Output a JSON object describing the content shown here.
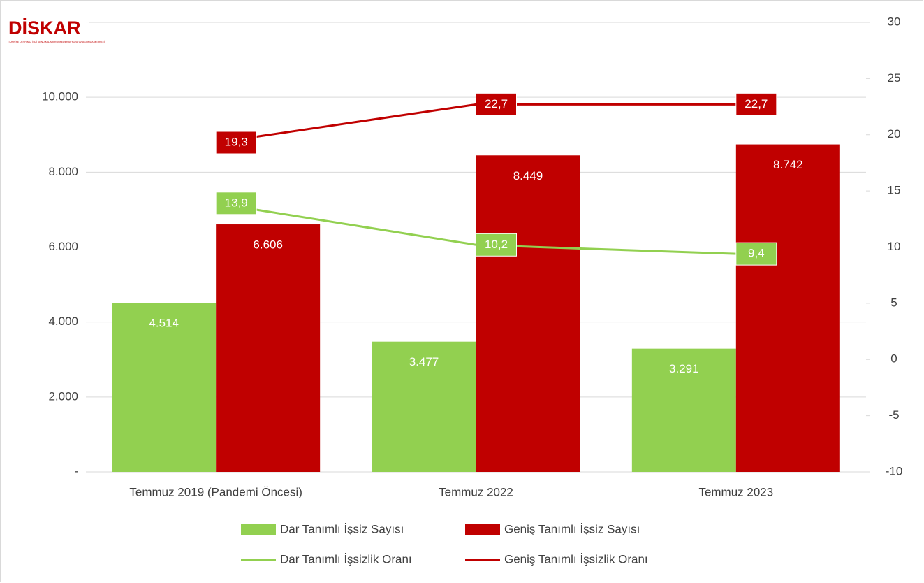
{
  "logo": {
    "text": "DİSKAR",
    "subtitle": "TÜRKİYE DEVRİMCİ İŞÇİ SENDİKALARI KONFEDERASYONU ARAŞTIRMA MERKEZİ"
  },
  "chart_data": {
    "type": "bar",
    "categories": [
      "Temmuz 2019 (Pandemi Öncesi)",
      "Temmuz 2022",
      "Temmuz 2023"
    ],
    "series": [
      {
        "name": "Dar Tanımlı İşsiz Sayısı",
        "color": "#92d050",
        "type": "bar",
        "values": [
          4514,
          3477,
          3291
        ],
        "value_labels": [
          "4.514",
          "3.477",
          "3.291"
        ]
      },
      {
        "name": "Geniş Tanımlı İşsiz Sayısı",
        "color": "#c00000",
        "type": "bar",
        "values": [
          6606,
          8449,
          8742
        ],
        "value_labels": [
          "6.606",
          "8.449",
          "8.742"
        ]
      },
      {
        "name": "Dar Tanımlı İşsizlik Oranı",
        "color": "#92d050",
        "type": "line",
        "axis": "y2",
        "values": [
          13.9,
          10.2,
          9.4
        ],
        "value_labels": [
          "13,9",
          "10,2",
          "9,4"
        ]
      },
      {
        "name": "Geniş Tanımlı İşsizlik Oranı",
        "color": "#c00000",
        "type": "line",
        "axis": "y2",
        "values": [
          19.3,
          22.7,
          22.7
        ],
        "value_labels": [
          "19,3",
          "22,7",
          "22,7"
        ]
      }
    ],
    "ylim": [
      0,
      12000
    ],
    "yticks": [
      {
        "value": 0,
        "label": "-"
      },
      {
        "value": 2000,
        "label": "2.000"
      },
      {
        "value": 4000,
        "label": "4.000"
      },
      {
        "value": 6000,
        "label": "6.000"
      },
      {
        "value": 8000,
        "label": "8.000"
      },
      {
        "value": 10000,
        "label": "10.000"
      }
    ],
    "y2lim": [
      -10,
      30
    ],
    "y2ticks": [
      -10,
      -5,
      0,
      5,
      10,
      15,
      20,
      25,
      30
    ],
    "grid": true,
    "legend": "bottom"
  }
}
